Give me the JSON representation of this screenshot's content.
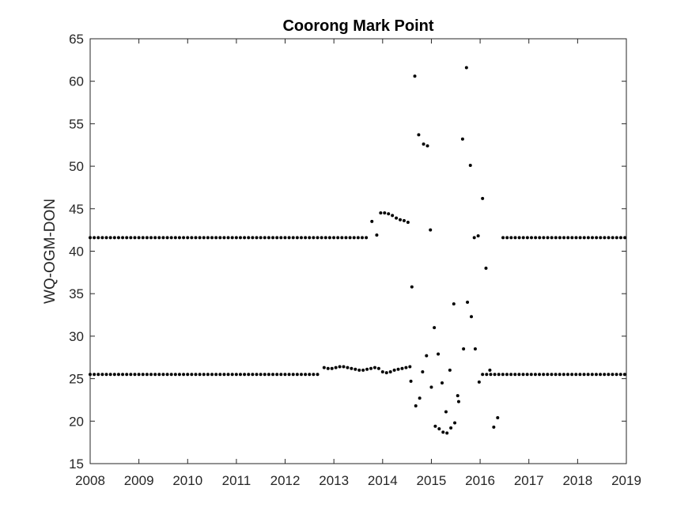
{
  "chart_data": {
    "type": "scatter",
    "title": "Coorong Mark Point",
    "xlabel": "",
    "ylabel": "WQ-OGM-DON",
    "xlim": [
      2008,
      2019
    ],
    "ylim": [
      15,
      65
    ],
    "xticks": [
      2008,
      2009,
      2010,
      2011,
      2012,
      2013,
      2014,
      2015,
      2016,
      2017,
      2018,
      2019
    ],
    "yticks": [
      15,
      20,
      25,
      30,
      35,
      40,
      45,
      50,
      55,
      60,
      65
    ],
    "grid": false,
    "legend": "none",
    "marker_color": "#000000",
    "series": [
      {
        "baselines": [
          {
            "y": 41.6,
            "from": 2008.0,
            "to": 2013.72,
            "step": 0.0833
          },
          {
            "y": 25.5,
            "from": 2008.0,
            "to": 2012.72,
            "step": 0.0833
          },
          {
            "y": 41.6,
            "from": 2016.47,
            "to": 2018.97,
            "step": 0.0833
          },
          {
            "y": 25.5,
            "from": 2016.05,
            "to": 2018.97,
            "step": 0.0833
          }
        ],
        "points": [
          [
            2012.8,
            26.3
          ],
          [
            2012.88,
            26.2
          ],
          [
            2012.96,
            26.2
          ],
          [
            2013.04,
            26.3
          ],
          [
            2013.12,
            26.4
          ],
          [
            2013.2,
            26.4
          ],
          [
            2013.28,
            26.3
          ],
          [
            2013.36,
            26.2
          ],
          [
            2013.44,
            26.1
          ],
          [
            2013.52,
            26.0
          ],
          [
            2013.6,
            26.0
          ],
          [
            2013.68,
            26.1
          ],
          [
            2013.76,
            26.2
          ],
          [
            2013.84,
            26.3
          ],
          [
            2013.92,
            26.2
          ],
          [
            2014.0,
            25.8
          ],
          [
            2014.08,
            25.7
          ],
          [
            2014.16,
            25.8
          ],
          [
            2014.24,
            26.0
          ],
          [
            2014.32,
            26.1
          ],
          [
            2014.4,
            26.2
          ],
          [
            2014.48,
            26.3
          ],
          [
            2014.56,
            26.4
          ],
          [
            2013.78,
            43.5
          ],
          [
            2013.88,
            41.9
          ],
          [
            2013.96,
            44.5
          ],
          [
            2014.04,
            44.5
          ],
          [
            2014.12,
            44.4
          ],
          [
            2014.2,
            44.2
          ],
          [
            2014.28,
            43.9
          ],
          [
            2014.36,
            43.7
          ],
          [
            2014.44,
            43.6
          ],
          [
            2014.52,
            43.4
          ],
          [
            2014.58,
            24.7
          ],
          [
            2014.6,
            35.8
          ],
          [
            2014.66,
            60.6
          ],
          [
            2014.68,
            21.8
          ],
          [
            2014.74,
            53.7
          ],
          [
            2014.76,
            22.7
          ],
          [
            2014.82,
            25.8
          ],
          [
            2014.84,
            52.6
          ],
          [
            2014.9,
            27.7
          ],
          [
            2014.92,
            52.4
          ],
          [
            2014.98,
            42.5
          ],
          [
            2015.0,
            24.0
          ],
          [
            2015.06,
            31.0
          ],
          [
            2015.08,
            19.4
          ],
          [
            2015.14,
            27.9
          ],
          [
            2015.16,
            19.1
          ],
          [
            2015.22,
            24.5
          ],
          [
            2015.24,
            18.7
          ],
          [
            2015.3,
            21.1
          ],
          [
            2015.32,
            18.6
          ],
          [
            2015.38,
            26.0
          ],
          [
            2015.4,
            19.2
          ],
          [
            2015.46,
            33.8
          ],
          [
            2015.48,
            19.8
          ],
          [
            2015.54,
            23.0
          ],
          [
            2015.56,
            22.3
          ],
          [
            2015.64,
            53.2
          ],
          [
            2015.66,
            28.5
          ],
          [
            2015.72,
            61.6
          ],
          [
            2015.74,
            34.0
          ],
          [
            2015.8,
            50.1
          ],
          [
            2015.82,
            32.3
          ],
          [
            2015.88,
            41.6
          ],
          [
            2015.9,
            28.5
          ],
          [
            2015.96,
            41.8
          ],
          [
            2015.98,
            24.6
          ],
          [
            2016.05,
            46.2
          ],
          [
            2016.12,
            38.0
          ],
          [
            2016.2,
            26.0
          ],
          [
            2016.28,
            19.3
          ],
          [
            2016.36,
            20.4
          ]
        ]
      }
    ]
  }
}
